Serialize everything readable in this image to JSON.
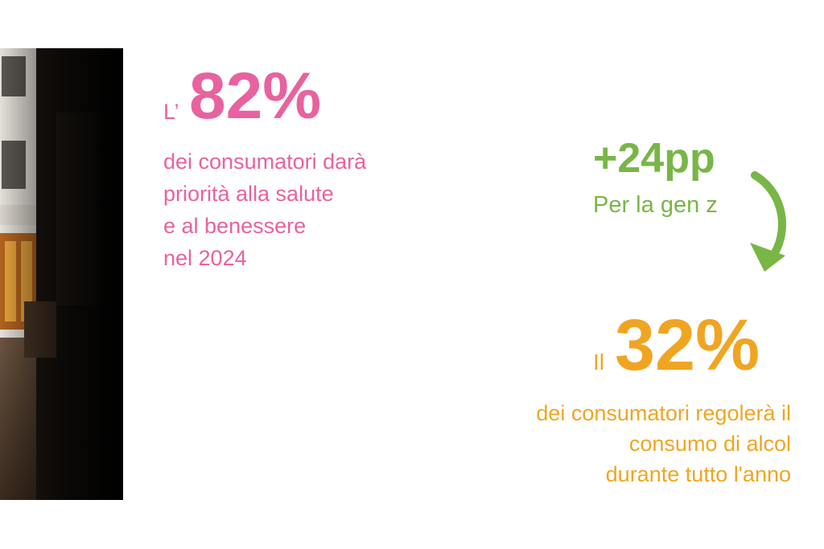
{
  "left_stat": {
    "prefix": "L’",
    "value": "82%",
    "description": [
      "dei consumatori darà",
      "priorità alla salute",
      "e al benessere",
      "nel 2024"
    ]
  },
  "highlight": {
    "value": "+24pp",
    "label": "Per la gen z"
  },
  "right_stat": {
    "prefix": "Il",
    "value": "32%",
    "description": [
      "dei consumatori regolerà il",
      "consumo di alcol",
      "durante tutto l'anno"
    ]
  }
}
